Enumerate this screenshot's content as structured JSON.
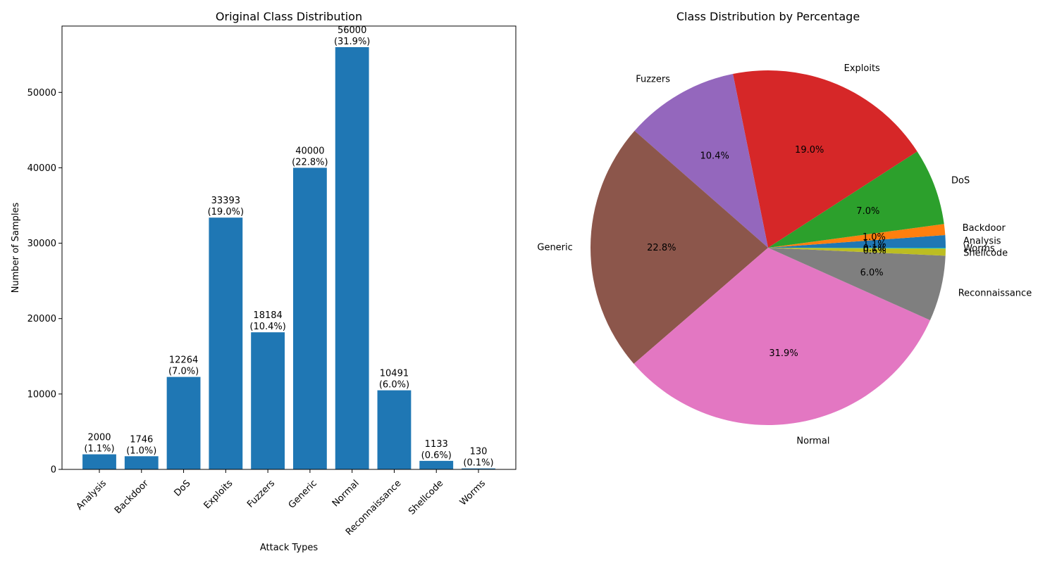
{
  "chart_data": [
    {
      "type": "bar",
      "title": "Original Class Distribution",
      "xlabel": "Attack Types",
      "ylabel": "Number of Samples",
      "categories": [
        "Analysis",
        "Backdoor",
        "DoS",
        "Exploits",
        "Fuzzers",
        "Generic",
        "Normal",
        "Reconnaissance",
        "Shellcode",
        "Worms"
      ],
      "values": [
        2000,
        1746,
        12264,
        33393,
        18184,
        40000,
        56000,
        10491,
        1133,
        130
      ],
      "bar_labels": [
        "2000\n(1.1%)",
        "1746\n(1.0%)",
        "12264\n(7.0%)",
        "33393\n(19.0%)",
        "18184\n(10.4%)",
        "40000\n(22.8%)",
        "56000\n(31.9%)",
        "10491\n(6.0%)",
        "1133\n(0.6%)",
        "130\n(0.1%)"
      ],
      "yticks": [
        "0",
        "10000",
        "20000",
        "30000",
        "40000",
        "50000"
      ],
      "ytick_values": [
        0,
        10000,
        20000,
        30000,
        40000,
        50000
      ],
      "ylim": [
        0,
        58800
      ],
      "bar_color": "#1f77b4",
      "grid": false
    },
    {
      "type": "pie",
      "title": "Class Distribution by Percentage",
      "labels": [
        "Analysis",
        "Backdoor",
        "DoS",
        "Exploits",
        "Fuzzers",
        "Generic",
        "Normal",
        "Reconnaissance",
        "Shellcode",
        "Worms"
      ],
      "values": [
        2000,
        1746,
        12264,
        33393,
        18184,
        40000,
        56000,
        10491,
        1133,
        130
      ],
      "pct_labels": [
        "1.1%",
        "1.0%",
        "7.0%",
        "19.0%",
        "10.4%",
        "22.8%",
        "31.9%",
        "6.0%",
        "0.6%",
        "0.1%"
      ],
      "colors": [
        "#1f77b4",
        "#ff7f0e",
        "#2ca02c",
        "#d62728",
        "#9467bd",
        "#8c564b",
        "#e377c2",
        "#7f7f7f",
        "#bcbd22",
        "#17becf"
      ],
      "start_angle_deg": 0,
      "direction": "counterclockwise"
    }
  ]
}
